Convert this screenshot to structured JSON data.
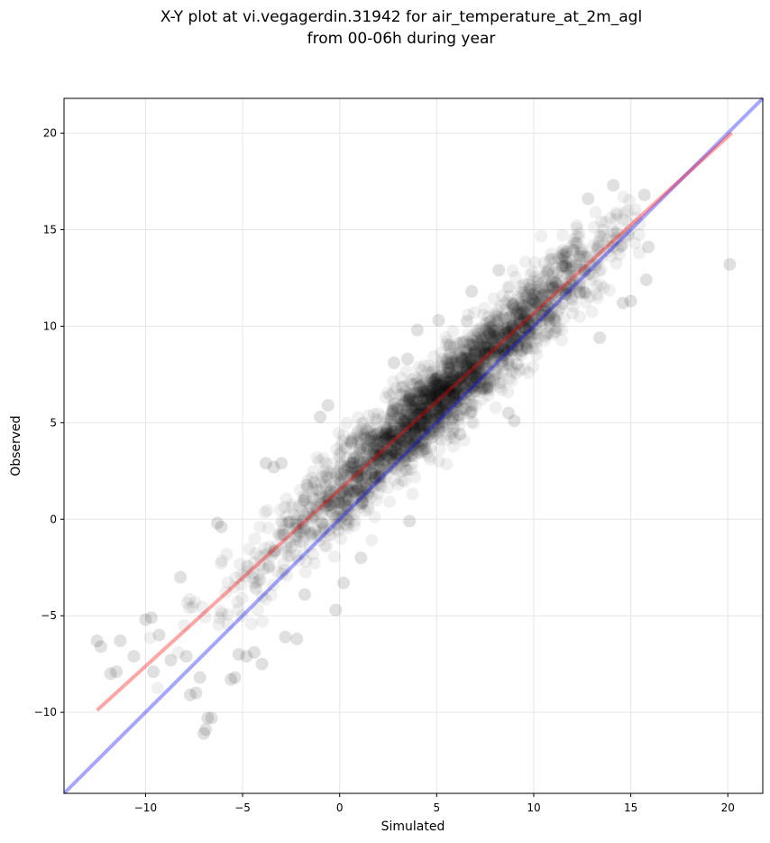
{
  "chart_data": {
    "type": "scatter",
    "title": "X-Y plot at vi.vegagerdin.31942 for air_temperature_at_2m_agl",
    "subtitle": "from 00-06h during year",
    "xlabel": "Simulated",
    "ylabel": "Observed",
    "xlim": [
      -14.2,
      21.8
    ],
    "ylim": [
      -14.2,
      21.8
    ],
    "xticks": [
      -10,
      -5,
      0,
      5,
      10,
      15,
      20
    ],
    "yticks": [
      -10,
      -5,
      0,
      5,
      10,
      15,
      20
    ],
    "xtick_labels": [
      "−10",
      "−5",
      "0",
      "5",
      "10",
      "15",
      "20"
    ],
    "ytick_labels": [
      "−10",
      "−5",
      "0",
      "5",
      "10",
      "15",
      "20"
    ],
    "grid": true,
    "point_color": "#000000",
    "point_opacity": 0.06,
    "regression_line": {
      "color": "#ff0000",
      "x": [
        -12.5,
        20.2
      ],
      "y": [
        -9.9,
        20.0
      ]
    },
    "identity_line": {
      "color": "#0000ff",
      "x": [
        -14.2,
        21.8
      ],
      "y": [
        -14.2,
        21.8
      ]
    },
    "outliers": [
      {
        "x": -12.5,
        "y": -6.3
      },
      {
        "x": -12.3,
        "y": -6.6
      },
      {
        "x": -11.8,
        "y": -8.0
      },
      {
        "x": -11.5,
        "y": -7.9
      },
      {
        "x": -11.3,
        "y": -6.3
      },
      {
        "x": -10.6,
        "y": -7.1
      },
      {
        "x": -10.0,
        "y": -5.2
      },
      {
        "x": -9.7,
        "y": -5.1
      },
      {
        "x": -9.6,
        "y": -7.9
      },
      {
        "x": -9.3,
        "y": -6.0
      },
      {
        "x": -8.7,
        "y": -7.3
      },
      {
        "x": -8.2,
        "y": -3.0
      },
      {
        "x": -7.9,
        "y": -7.1
      },
      {
        "x": -7.7,
        "y": -9.1
      },
      {
        "x": -7.4,
        "y": -9.0
      },
      {
        "x": -7.2,
        "y": -8.2
      },
      {
        "x": -7.0,
        "y": -11.1
      },
      {
        "x": -6.9,
        "y": -10.9
      },
      {
        "x": -6.8,
        "y": -10.3
      },
      {
        "x": -6.6,
        "y": -10.3
      },
      {
        "x": -6.3,
        "y": -0.2
      },
      {
        "x": -6.1,
        "y": -0.4
      },
      {
        "x": -5.6,
        "y": -8.3
      },
      {
        "x": -5.4,
        "y": -8.2
      },
      {
        "x": -5.2,
        "y": -7.0
      },
      {
        "x": -4.8,
        "y": -7.1
      },
      {
        "x": -4.4,
        "y": -6.9
      },
      {
        "x": -4.0,
        "y": -7.5
      },
      {
        "x": -3.8,
        "y": 2.9
      },
      {
        "x": -3.4,
        "y": 2.7
      },
      {
        "x": -3.0,
        "y": 2.9
      },
      {
        "x": -2.8,
        "y": -6.1
      },
      {
        "x": -2.2,
        "y": -6.2
      },
      {
        "x": -1.8,
        "y": -3.9
      },
      {
        "x": -1.0,
        "y": 5.3
      },
      {
        "x": -0.6,
        "y": 5.9
      },
      {
        "x": -0.2,
        "y": -4.7
      },
      {
        "x": 0.2,
        "y": -3.3
      },
      {
        "x": 1.1,
        "y": -2.0
      },
      {
        "x": 2.8,
        "y": 8.1
      },
      {
        "x": 3.5,
        "y": 8.3
      },
      {
        "x": 3.6,
        "y": -0.1
      },
      {
        "x": 4.0,
        "y": 9.8
      },
      {
        "x": 5.1,
        "y": 10.3
      },
      {
        "x": 6.2,
        "y": 4.4
      },
      {
        "x": 6.8,
        "y": 11.8
      },
      {
        "x": 8.2,
        "y": 12.9
      },
      {
        "x": 8.7,
        "y": 5.5
      },
      {
        "x": 9.0,
        "y": 5.1
      },
      {
        "x": 12.8,
        "y": 16.6
      },
      {
        "x": 13.4,
        "y": 9.4
      },
      {
        "x": 14.1,
        "y": 17.3
      },
      {
        "x": 14.6,
        "y": 11.2
      },
      {
        "x": 15.0,
        "y": 11.3
      },
      {
        "x": 15.7,
        "y": 16.8
      },
      {
        "x": 15.8,
        "y": 12.4
      },
      {
        "x": 15.9,
        "y": 14.1
      },
      {
        "x": 20.1,
        "y": 13.2
      }
    ]
  }
}
